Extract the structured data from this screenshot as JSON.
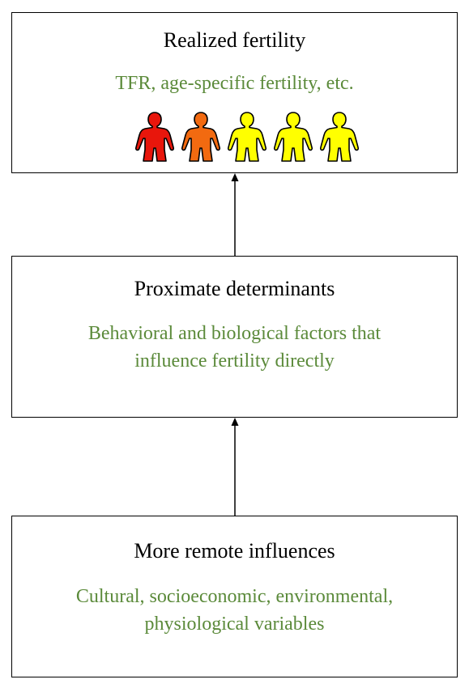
{
  "boxes": {
    "top": {
      "title": "Realized fertility",
      "subtitle_lines": [
        "TFR, age-specific fertility, etc."
      ]
    },
    "middle": {
      "title": "Proximate determinants",
      "subtitle_lines": [
        "Behavioral and biological factors that",
        "influence fertility directly"
      ]
    },
    "bottom": {
      "title": "More remote influences",
      "subtitle_lines": [
        "Cultural, socioeconomic, environmental,",
        "physiological variables"
      ]
    }
  },
  "colors": {
    "subtitle": "#5b8a3a",
    "border": "#000000",
    "person_fills": [
      "#e8160c",
      "#f26a10",
      "#ffff00",
      "#ffff00",
      "#ffff00"
    ]
  },
  "icons": {
    "person": "person-figure-icon",
    "arrow": "arrow-up-icon"
  },
  "person_count": 5
}
